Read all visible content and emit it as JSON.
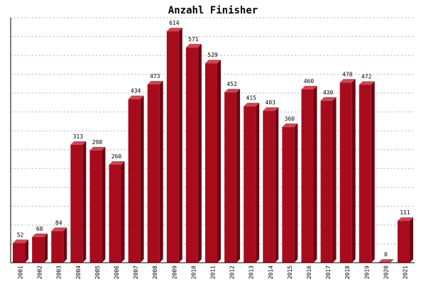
{
  "chart_data": {
    "type": "bar",
    "title": "Anzahl Finisher",
    "xlabel": "",
    "ylabel": "",
    "categories": [
      "2001",
      "2002",
      "2003",
      "2004",
      "2005",
      "2006",
      "2007",
      "2008",
      "2009",
      "2010",
      "2011",
      "2012",
      "2013",
      "2014",
      "2015",
      "2016",
      "2017",
      "2018",
      "2019",
      "2020",
      "2021"
    ],
    "values": [
      52,
      68,
      84,
      313,
      298,
      260,
      434,
      473,
      614,
      571,
      529,
      452,
      415,
      403,
      360,
      460,
      430,
      478,
      472,
      0,
      111
    ],
    "ylim": [
      0,
      650
    ],
    "grid": true,
    "legend": "none",
    "colors": {
      "bar_front": "#a80c1c",
      "bar_side": "#6b0712",
      "bar_top": "#d8404e",
      "grid": "#b4b4b4",
      "axis": "#000000"
    }
  }
}
